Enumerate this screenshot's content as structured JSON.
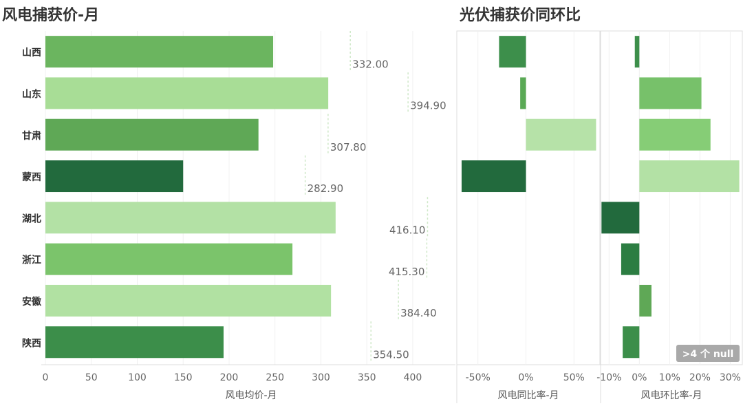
{
  "chart_data": [
    {
      "type": "bar",
      "orientation": "horizontal",
      "title": "风电捕获价-月",
      "xlabel": "风电均价-月",
      "categories": [
        "山西",
        "山东",
        "甘肃",
        "蒙西",
        "湖北",
        "浙江",
        "安徽",
        "陕西"
      ],
      "values": [
        248,
        308,
        232,
        150,
        316,
        269,
        311,
        194
      ],
      "xlim": [
        0,
        430
      ],
      "xticks": [
        0,
        50,
        100,
        150,
        200,
        250,
        300,
        350,
        400
      ],
      "reference_values": [
        332.0,
        394.9,
        307.8,
        282.9,
        416.1,
        415.3,
        384.4,
        354.5
      ],
      "reference_labels": [
        "332.00",
        "394.90",
        "307.80",
        "282.90",
        "416.10",
        "415.30",
        "384.40",
        "354.50"
      ],
      "colors": [
        "#6bb55f",
        "#a8dd96",
        "#5fa856",
        "#226a3d",
        "#b3e1a5",
        "#7bc46b",
        "#b1e1a2",
        "#3c8e4a"
      ],
      "grid": true
    },
    {
      "type": "bar",
      "orientation": "horizontal",
      "title": "光伏捕获价同环比",
      "xlabel": "风电同比率-月",
      "categories": [
        "山西",
        "山东",
        "甘肃",
        "蒙西",
        "湖北",
        "浙江",
        "安徽",
        "陕西"
      ],
      "values": [
        -28,
        -6,
        73,
        -67,
        null,
        null,
        null,
        null
      ],
      "xlim": [
        -72,
        77
      ],
      "xticks": [
        -50,
        0,
        50
      ],
      "tick_labels": [
        "-50%",
        "0%",
        "50%"
      ],
      "colors": [
        "#3d8f4b",
        "#5aa955",
        "#b6e2a8",
        "#226a3d",
        "",
        "",
        "",
        ""
      ]
    },
    {
      "type": "bar",
      "orientation": "horizontal",
      "xlabel": "风电环比率-月",
      "categories": [
        "山西",
        "山东",
        "甘肃",
        "蒙西",
        "湖北",
        "浙江",
        "安徽",
        "陕西"
      ],
      "values": [
        -1.5,
        20.5,
        23.5,
        33,
        -12.5,
        -6,
        4,
        -5.5
      ],
      "xlim": [
        -12.8,
        34
      ],
      "xticks": [
        -10,
        0,
        10,
        20,
        30
      ],
      "tick_labels": [
        "-10%",
        "0%",
        "10%",
        "20%",
        "30%"
      ],
      "colors": [
        "#3d8f4b",
        "#77c16a",
        "#86cd76",
        "#b3e1a5",
        "#226a3d",
        "#2c7d42",
        "#5fa856",
        "#3c8e4a"
      ],
      "null_badge": ">4 个 null"
    }
  ]
}
